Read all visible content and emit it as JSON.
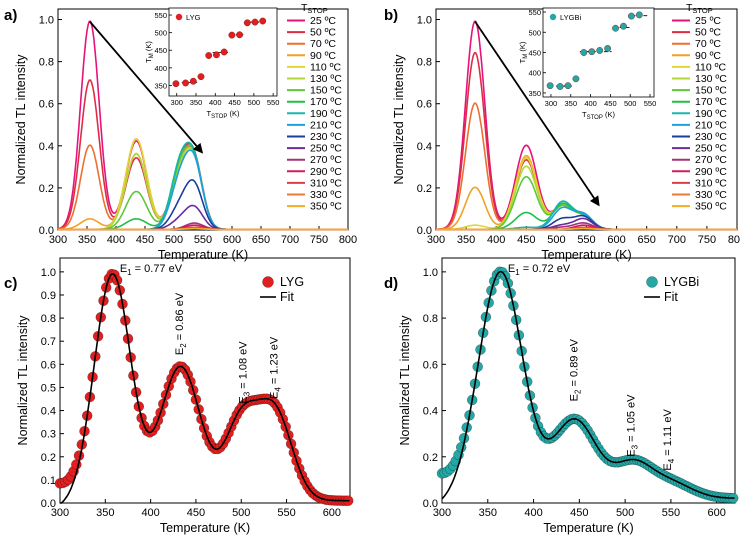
{
  "panels": [
    {
      "label": "a)",
      "chart_data": {
        "type": "line",
        "title": "",
        "xlabel": "Temperature (K)",
        "ylabel": "Normalized TL intensity",
        "xlim": [
          300,
          800
        ],
        "ylim": [
          0,
          1.05
        ],
        "xticks": [
          "300",
          "350",
          "400",
          "450",
          "500",
          "550",
          "600",
          "650",
          "700",
          "750",
          "800"
        ],
        "yticks": [
          "0.0",
          "0.2",
          "0.4",
          "0.6",
          "0.8",
          "1.0"
        ],
        "legend_title": "T",
        "legend_title_sub": "STOP",
        "legend_position": "top-right",
        "peak_positions_K": [
          355,
          435,
          510,
          535
        ],
        "arrow": {
          "from": [
            355,
            0.99
          ],
          "to": [
            548,
            0.37
          ]
        },
        "series": [
          {
            "name": "25 ºC",
            "color": "#e6137a",
            "amps": [
              0.99,
              0.42,
              0.26,
              0.3
            ]
          },
          {
            "name": "50 ºC",
            "color": "#dd2d45",
            "amps": [
              0.71,
              0.34,
              0.24,
              0.29
            ]
          },
          {
            "name": "70 ºC",
            "color": "#ec6f31",
            "amps": [
              0.4,
              0.36,
              0.25,
              0.29
            ]
          },
          {
            "name": "90 ºC",
            "color": "#f1a224",
            "amps": [
              0.05,
              0.43,
              0.24,
              0.29
            ]
          },
          {
            "name": "110 ºC",
            "color": "#e0d634",
            "amps": [
              0,
              0.43,
              0.24,
              0.29
            ]
          },
          {
            "name": "130 ºC",
            "color": "#b4d63a",
            "amps": [
              0,
              0.36,
              0.24,
              0.29
            ]
          },
          {
            "name": "150 ºC",
            "color": "#5dc83a",
            "amps": [
              0,
              0.18,
              0.26,
              0.29
            ]
          },
          {
            "name": "170 ºC",
            "color": "#1fbf4a",
            "amps": [
              0,
              0.05,
              0.28,
              0.29
            ]
          },
          {
            "name": "190 ºC",
            "color": "#18b7a8",
            "amps": [
              0,
              0,
              0.28,
              0.29
            ]
          },
          {
            "name": "210 ºC",
            "color": "#1ea0dc",
            "amps": [
              0,
              0,
              0.22,
              0.29
            ]
          },
          {
            "name": "230 ºC",
            "color": "#1b3d9c",
            "amps": [
              0,
              0,
              0.1,
              0.2
            ]
          },
          {
            "name": "250 ºC",
            "color": "#6a2b9c",
            "amps": [
              0,
              0,
              0.04,
              0.1
            ]
          },
          {
            "name": "270 ºC",
            "color": "#a03080",
            "amps": [
              0,
              0,
              0,
              0.03
            ]
          },
          {
            "name": "290 ºC",
            "color": "#d21a5c",
            "amps": [
              0,
              0,
              0,
              0.02
            ]
          },
          {
            "name": "310 ºC",
            "color": "#dd3c4b",
            "amps": [
              0,
              0,
              0,
              0.01
            ]
          },
          {
            "name": "330 ºC",
            "color": "#ea7a35",
            "amps": [
              0,
              0,
              0,
              0.005
            ]
          },
          {
            "name": "350 ºC",
            "color": "#f2ad2a",
            "amps": [
              0,
              0,
              0,
              0.003
            ]
          }
        ],
        "inset": {
          "legend": "LYG",
          "marker_color": "#e02020",
          "xlabel": "T",
          "xlabel_sub": "STOP",
          "xlabel_unit": " (K)",
          "ylabel": "T",
          "ylabel_sub": "M",
          "ylabel_unit": " (K)",
          "xlim": [
            280,
            560
          ],
          "ylim": [
            320,
            570
          ],
          "xticks": [
            "300",
            "350",
            "400",
            "450",
            "500",
            "550"
          ],
          "yticks": [
            "350",
            "400",
            "450",
            "500",
            "550"
          ],
          "x": [
            298,
            323,
            343,
            363,
            383,
            403,
            423,
            443,
            463,
            483,
            503,
            523
          ],
          "y": [
            355,
            357,
            362,
            375,
            435,
            437,
            445,
            493,
            494,
            528,
            530,
            533
          ],
          "dashes": [
            {
              "x1": 313,
              "x2": 353,
              "y": 358
            },
            {
              "x1": 393,
              "x2": 433,
              "y": 444
            },
            {
              "x1": 453,
              "x2": 473,
              "y": 494
            },
            {
              "x1": 488,
              "x2": 528,
              "y": 530
            }
          ]
        }
      }
    },
    {
      "label": "b)",
      "chart_data": {
        "type": "line",
        "title": "",
        "xlabel": "Temperature (K)",
        "ylabel": "Normalized TL intensity",
        "xlim": [
          300,
          800
        ],
        "ylim": [
          0,
          1.05
        ],
        "xticks": [
          "300",
          "350",
          "400",
          "450",
          "500",
          "550",
          "600",
          "650",
          "700",
          "750",
          "800"
        ],
        "yticks": [
          "0.0",
          "0.2",
          "0.4",
          "0.6",
          "0.8",
          "1.0"
        ],
        "legend_title": "T",
        "legend_title_sub": "STOP",
        "legend_position": "top-right",
        "peak_positions_K": [
          365,
          450,
          510,
          545
        ],
        "arrow": {
          "from": [
            365,
            0.99
          ],
          "to": [
            570,
            0.12
          ]
        },
        "series": [
          {
            "name": "25 ºC",
            "color": "#e6137a",
            "amps": [
              0.99,
              0.4,
              0.11,
              0.06
            ]
          },
          {
            "name": "50 ºC",
            "color": "#dd2d45",
            "amps": [
              0.84,
              0.33,
              0.11,
              0.06
            ]
          },
          {
            "name": "70 ºC",
            "color": "#ec6f31",
            "amps": [
              0.6,
              0.34,
              0.11,
              0.06
            ]
          },
          {
            "name": "90 ºC",
            "color": "#f1a224",
            "amps": [
              0.2,
              0.35,
              0.11,
              0.06
            ]
          },
          {
            "name": "110 ºC",
            "color": "#e0d634",
            "amps": [
              0.02,
              0.34,
              0.11,
              0.06
            ]
          },
          {
            "name": "130 ºC",
            "color": "#b4d63a",
            "amps": [
              0,
              0.3,
              0.11,
              0.06
            ]
          },
          {
            "name": "150 ºC",
            "color": "#5dc83a",
            "amps": [
              0,
              0.25,
              0.11,
              0.06
            ]
          },
          {
            "name": "170 ºC",
            "color": "#1fbf4a",
            "amps": [
              0,
              0.08,
              0.12,
              0.06
            ]
          },
          {
            "name": "190 ºC",
            "color": "#18b7a8",
            "amps": [
              0,
              0.01,
              0.13,
              0.06
            ]
          },
          {
            "name": "210 ºC",
            "color": "#1ea0dc",
            "amps": [
              0,
              0,
              0.1,
              0.07
            ]
          },
          {
            "name": "230 ºC",
            "color": "#1b3d9c",
            "amps": [
              0,
              0,
              0.05,
              0.06
            ]
          },
          {
            "name": "250 ºC",
            "color": "#6a2b9c",
            "amps": [
              0,
              0,
              0.02,
              0.05
            ]
          },
          {
            "name": "270 ºC",
            "color": "#a03080",
            "amps": [
              0,
              0,
              0.01,
              0.03
            ]
          },
          {
            "name": "290 ºC",
            "color": "#d21a5c",
            "amps": [
              0,
              0,
              0,
              0.02
            ]
          },
          {
            "name": "310 ºC",
            "color": "#dd3c4b",
            "amps": [
              0,
              0,
              0,
              0.01
            ]
          },
          {
            "name": "330 ºC",
            "color": "#ea7a35",
            "amps": [
              0,
              0,
              0,
              0.005
            ]
          },
          {
            "name": "350 ºC",
            "color": "#f2ad2a",
            "amps": [
              0,
              0,
              0,
              0.003
            ]
          }
        ],
        "inset": {
          "legend": "LYGBi",
          "marker_color": "#24a7a5",
          "xlabel": "T",
          "xlabel_sub": "STOP",
          "xlabel_unit": " (K)",
          "ylabel": "T",
          "ylabel_sub": "M",
          "ylabel_unit": " (K)",
          "xlim": [
            280,
            560
          ],
          "ylim": [
            340,
            560
          ],
          "xticks": [
            "300",
            "350",
            "400",
            "450",
            "500",
            "550"
          ],
          "yticks": [
            "350",
            "400",
            "450",
            "500",
            "550"
          ],
          "x": [
            298,
            323,
            343,
            363,
            383,
            403,
            423,
            443,
            463,
            483,
            503,
            523
          ],
          "y": [
            368,
            366,
            368,
            385,
            450,
            452,
            455,
            460,
            510,
            515,
            540,
            543
          ],
          "dashes": [
            {
              "x1": 313,
              "x2": 353,
              "y": 367
            },
            {
              "x1": 373,
              "x2": 453,
              "y": 452
            },
            {
              "x1": 458,
              "x2": 498,
              "y": 512
            },
            {
              "x1": 503,
              "x2": 543,
              "y": 541
            }
          ]
        }
      }
    },
    {
      "label": "c)",
      "chart_data": {
        "type": "scatter",
        "title": "",
        "xlabel": "Temperature (K)",
        "ylabel": "Normalized TL intensity",
        "xlim": [
          300,
          620
        ],
        "ylim": [
          0,
          1.06
        ],
        "xticks": [
          "300",
          "350",
          "400",
          "450",
          "500",
          "550",
          "600"
        ],
        "yticks": [
          "0.0",
          "0.1",
          "0.2",
          "0.3",
          "0.4",
          "0.5",
          "0.6",
          "0.7",
          "0.8",
          "0.9",
          "1.0"
        ],
        "legend": [
          "LYG",
          "Fit"
        ],
        "legend_position": "top-right",
        "marker_color": "#e02020",
        "fit_color": "#000000",
        "peaks": [
          {
            "T": 358,
            "amp": 0.98,
            "width": 20
          },
          {
            "T": 433,
            "amp": 0.58,
            "width": 22
          },
          {
            "T": 500,
            "amp": 0.34,
            "width": 18
          },
          {
            "T": 537,
            "amp": 0.38,
            "width": 19
          }
        ],
        "baseline": 0.01,
        "annotations": [
          {
            "text": "E",
            "sub": "1",
            "rest": " = 0.77 eV",
            "T": 366,
            "y": 1.0,
            "rot": 0
          },
          {
            "text": "E",
            "sub": "2",
            "rest": " = 0.86 eV",
            "T": 436,
            "y": 0.64,
            "rot": -90
          },
          {
            "text": "E",
            "sub": "3",
            "rest": " = 1.08 eV",
            "T": 506,
            "y": 0.43,
            "rot": -90
          },
          {
            "text": "E",
            "sub": "4",
            "rest": " = 1.23 eV",
            "T": 540,
            "y": 0.45,
            "rot": -90
          }
        ]
      }
    },
    {
      "label": "d)",
      "chart_data": {
        "type": "scatter",
        "title": "",
        "xlabel": "Temperature (K)",
        "ylabel": "Normalized TL intensity",
        "xlim": [
          300,
          620
        ],
        "ylim": [
          0,
          1.06
        ],
        "xticks": [
          "300",
          "350",
          "400",
          "450",
          "500",
          "550",
          "600"
        ],
        "yticks": [
          "0.0",
          "0.2",
          "0.4",
          "0.6",
          "0.8",
          "1.0"
        ],
        "legend": [
          "LYGBi",
          "Fit"
        ],
        "legend_position": "top-right",
        "marker_color": "#24a7a5",
        "fit_color": "#000000",
        "peaks": [
          {
            "T": 364,
            "amp": 0.98,
            "width": 24
          },
          {
            "T": 445,
            "amp": 0.34,
            "width": 24
          },
          {
            "T": 508,
            "amp": 0.14,
            "width": 20
          },
          {
            "T": 548,
            "amp": 0.07,
            "width": 24
          }
        ],
        "baseline": 0.02,
        "annotations": [
          {
            "text": "E",
            "sub": "1",
            "rest": " = 0.72 eV",
            "T": 372,
            "y": 1.0,
            "rot": 0
          },
          {
            "text": "E",
            "sub": "2",
            "rest": " = 0.89 eV",
            "T": 448,
            "y": 0.44,
            "rot": -90
          },
          {
            "text": "E",
            "sub": "3",
            "rest": " = 1.05 eV",
            "T": 510,
            "y": 0.2,
            "rot": -90
          },
          {
            "text": "E",
            "sub": "4",
            "rest": " = 1.11 eV",
            "T": 550,
            "y": 0.14,
            "rot": -90
          }
        ]
      }
    }
  ]
}
